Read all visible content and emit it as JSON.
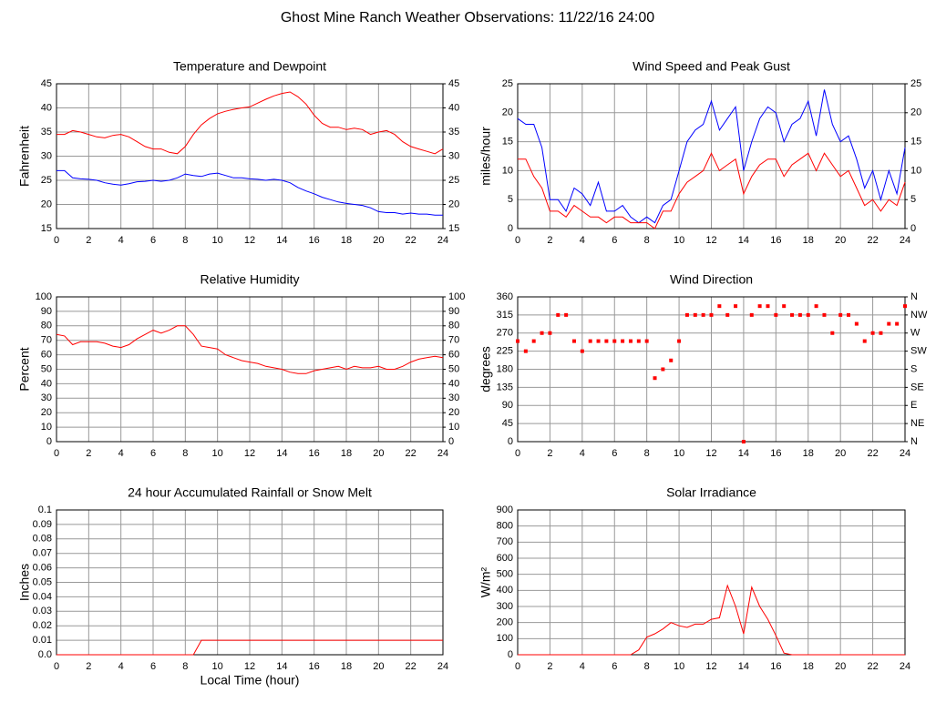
{
  "title": "Ghost Mine Ranch Weather Observations: 11/22/16 24:00",
  "chart_data": [
    {
      "type": "line",
      "title": "Temperature and Dewpoint",
      "ylabel": "Fahrenheit",
      "x": [
        0,
        0.5,
        1,
        1.5,
        2,
        2.5,
        3,
        3.5,
        4,
        4.5,
        5,
        5.5,
        6,
        6.5,
        7,
        7.5,
        8,
        8.5,
        9,
        9.5,
        10,
        10.5,
        11,
        11.5,
        12,
        12.5,
        13,
        13.5,
        14,
        14.5,
        15,
        15.5,
        16,
        16.5,
        17,
        17.5,
        18,
        18.5,
        19,
        19.5,
        20,
        20.5,
        21,
        21.5,
        22,
        22.5,
        23,
        23.5,
        24
      ],
      "series": [
        {
          "color": "#ff0000",
          "values": [
            34.5,
            34.5,
            35.3,
            35,
            34.5,
            34,
            33.8,
            34.3,
            34.5,
            34,
            33,
            32,
            31.5,
            31.5,
            30.8,
            30.5,
            32,
            34.5,
            36.5,
            37.8,
            38.8,
            39.3,
            39.7,
            40,
            40.2,
            41,
            41.8,
            42.5,
            43,
            43.3,
            42.3,
            40.8,
            38.5,
            36.8,
            36,
            36,
            35.5,
            35.8,
            35.5,
            34.5,
            35,
            35.3,
            34.5,
            33,
            32,
            31.5,
            31,
            30.5,
            31.5
          ]
        },
        {
          "color": "#0000ff",
          "values": [
            27,
            27,
            25.5,
            25.3,
            25.2,
            25,
            24.5,
            24.2,
            24,
            24.3,
            24.7,
            24.8,
            25,
            24.8,
            25,
            25.5,
            26.3,
            26,
            25.8,
            26.3,
            26.5,
            26,
            25.5,
            25.5,
            25.3,
            25.2,
            25,
            25.2,
            25,
            24.5,
            23.5,
            22.8,
            22.2,
            21.5,
            21,
            20.5,
            20.2,
            20,
            19.8,
            19.3,
            18.5,
            18.3,
            18.3,
            18,
            18.2,
            18,
            18,
            17.8,
            17.8
          ]
        }
      ],
      "xlim": [
        0,
        24
      ],
      "xticks": [
        0,
        2,
        4,
        6,
        8,
        10,
        12,
        14,
        16,
        18,
        20,
        22,
        24
      ],
      "ylim": [
        15,
        45
      ],
      "yticks": [
        15,
        20,
        25,
        30,
        35,
        40,
        45
      ],
      "y2lim": [
        15,
        45
      ],
      "y2ticks": [
        15,
        20,
        25,
        30,
        35,
        40,
        45
      ],
      "grid": true
    },
    {
      "type": "line",
      "title": "Wind Speed and Peak Gust",
      "ylabel": "miles/hour",
      "x": [
        0,
        0.5,
        1,
        1.5,
        2,
        2.5,
        3,
        3.5,
        4,
        4.5,
        5,
        5.5,
        6,
        6.5,
        7,
        7.5,
        8,
        8.5,
        9,
        9.5,
        10,
        10.5,
        11,
        11.5,
        12,
        12.5,
        13,
        13.5,
        14,
        14.5,
        15,
        15.5,
        16,
        16.5,
        17,
        17.5,
        18,
        18.5,
        19,
        19.5,
        20,
        20.5,
        21,
        21.5,
        22,
        22.5,
        23,
        23.5,
        24
      ],
      "series": [
        {
          "color": "#0000ff",
          "values": [
            19,
            18,
            18,
            14,
            5,
            5,
            3,
            7,
            6,
            4,
            8,
            3,
            3,
            4,
            2,
            1,
            2,
            1,
            4,
            5,
            10,
            15,
            17,
            18,
            22,
            17,
            19,
            21,
            10,
            15,
            19,
            21,
            20,
            15,
            18,
            19,
            22,
            16,
            24,
            18,
            15,
            16,
            12,
            7,
            10,
            5,
            10,
            6,
            14
          ]
        },
        {
          "color": "#ff0000",
          "values": [
            12,
            12,
            9,
            7,
            3,
            3,
            2,
            4,
            3,
            2,
            2,
            1,
            2,
            2,
            1,
            1,
            1,
            0,
            3,
            3,
            6,
            8,
            9,
            10,
            13,
            10,
            11,
            12,
            6,
            9,
            11,
            12,
            12,
            9,
            11,
            12,
            13,
            10,
            13,
            11,
            9,
            10,
            7,
            4,
            5,
            3,
            5,
            4,
            8
          ]
        }
      ],
      "xlim": [
        0,
        24
      ],
      "xticks": [
        0,
        2,
        4,
        6,
        8,
        10,
        12,
        14,
        16,
        18,
        20,
        22,
        24
      ],
      "ylim": [
        0,
        25
      ],
      "yticks": [
        0,
        5,
        10,
        15,
        20,
        25
      ],
      "y2lim": [
        0,
        25
      ],
      "y2ticks": [
        0,
        5,
        10,
        15,
        20,
        25
      ],
      "grid": true
    },
    {
      "type": "line",
      "title": "Relative Humidity",
      "ylabel": "Percent",
      "x": [
        0,
        0.5,
        1,
        1.5,
        2,
        2.5,
        3,
        3.5,
        4,
        4.5,
        5,
        5.5,
        6,
        6.5,
        7,
        7.5,
        8,
        8.5,
        9,
        9.5,
        10,
        10.5,
        11,
        11.5,
        12,
        12.5,
        13,
        13.5,
        14,
        14.5,
        15,
        15.5,
        16,
        16.5,
        17,
        17.5,
        18,
        18.5,
        19,
        19.5,
        20,
        20.5,
        21,
        21.5,
        22,
        22.5,
        23,
        23.5,
        24
      ],
      "series": [
        {
          "color": "#ff0000",
          "values": [
            74,
            73,
            67,
            69,
            69,
            69,
            68,
            66,
            65,
            67,
            71,
            74,
            77,
            75,
            77,
            80,
            80,
            74,
            66,
            65,
            64,
            60,
            58,
            56,
            55,
            54,
            52,
            51,
            50,
            48,
            47,
            47,
            49,
            50,
            51,
            52,
            50,
            52,
            51,
            51,
            52,
            50,
            50,
            52,
            55,
            57,
            58,
            59,
            58
          ]
        }
      ],
      "xlim": [
        0,
        24
      ],
      "xticks": [
        0,
        2,
        4,
        6,
        8,
        10,
        12,
        14,
        16,
        18,
        20,
        22,
        24
      ],
      "ylim": [
        0,
        100
      ],
      "yticks": [
        0,
        10,
        20,
        30,
        40,
        50,
        60,
        70,
        80,
        90,
        100
      ],
      "y2lim": [
        0,
        100
      ],
      "y2ticks": [
        0,
        10,
        20,
        30,
        40,
        50,
        60,
        70,
        80,
        90,
        100
      ],
      "grid": true
    },
    {
      "type": "scatter",
      "title": "Wind Direction",
      "ylabel": "degrees",
      "x": [
        0,
        0.5,
        1,
        1.5,
        2,
        2.5,
        3,
        3.5,
        4,
        4.5,
        5,
        5.5,
        6,
        6.5,
        7,
        7.5,
        8,
        8.5,
        9,
        9.5,
        10,
        10.5,
        11,
        11.5,
        12,
        12.5,
        13,
        13.5,
        14,
        14.5,
        15,
        15.5,
        16,
        16.5,
        17,
        17.5,
        18,
        18.5,
        19,
        19.5,
        20,
        20.5,
        21,
        21.5,
        22,
        22.5,
        23,
        23.5,
        24
      ],
      "series": [
        {
          "color": "#ff0000",
          "values": [
            250,
            225,
            250,
            270,
            270,
            315,
            315,
            250,
            225,
            250,
            250,
            250,
            250,
            250,
            250,
            250,
            250,
            158,
            180,
            202,
            250,
            315,
            315,
            315,
            315,
            337,
            315,
            337,
            0,
            315,
            337,
            337,
            315,
            337,
            315,
            315,
            315,
            337,
            315,
            270,
            315,
            315,
            293,
            250,
            270,
            270,
            293,
            293,
            337
          ]
        }
      ],
      "xlim": [
        0,
        24
      ],
      "xticks": [
        0,
        2,
        4,
        6,
        8,
        10,
        12,
        14,
        16,
        18,
        20,
        22,
        24
      ],
      "ylim": [
        0,
        360
      ],
      "yticks": [
        0,
        45,
        90,
        135,
        180,
        225,
        270,
        315,
        360
      ],
      "y2lim": [
        0,
        360
      ],
      "y2ticks": [
        {
          "value": 0,
          "label": "N"
        },
        {
          "value": 45,
          "label": "NE"
        },
        {
          "value": 90,
          "label": "E"
        },
        {
          "value": 135,
          "label": "SE"
        },
        {
          "value": 180,
          "label": "S"
        },
        {
          "value": 225,
          "label": "SW"
        },
        {
          "value": 270,
          "label": "W"
        },
        {
          "value": 315,
          "label": "NW"
        },
        {
          "value": 360,
          "label": "N"
        }
      ],
      "grid": true
    },
    {
      "type": "line",
      "title": "24 hour Accumulated Rainfall or Snow Melt",
      "ylabel": "Inches",
      "xlabel": "Local Time (hour)",
      "x": [
        0,
        0.5,
        1,
        1.5,
        2,
        2.5,
        3,
        3.5,
        4,
        4.5,
        5,
        5.5,
        6,
        6.5,
        7,
        7.5,
        8,
        8.5,
        9,
        9.5,
        10,
        10.5,
        11,
        11.5,
        12,
        12.5,
        13,
        13.5,
        14,
        14.5,
        15,
        15.5,
        16,
        16.5,
        17,
        17.5,
        18,
        18.5,
        19,
        19.5,
        20,
        20.5,
        21,
        21.5,
        22,
        22.5,
        23,
        23.5,
        24
      ],
      "series": [
        {
          "color": "#ff0000",
          "values": [
            0,
            0,
            0,
            0,
            0,
            0,
            0,
            0,
            0,
            0,
            0,
            0,
            0,
            0,
            0,
            0,
            0,
            0,
            0.01,
            0.01,
            0.01,
            0.01,
            0.01,
            0.01,
            0.01,
            0.01,
            0.01,
            0.01,
            0.01,
            0.01,
            0.01,
            0.01,
            0.01,
            0.01,
            0.01,
            0.01,
            0.01,
            0.01,
            0.01,
            0.01,
            0.01,
            0.01,
            0.01,
            0.01,
            0.01,
            0.01,
            0.01,
            0.01,
            0.01
          ]
        }
      ],
      "xlim": [
        0,
        24
      ],
      "xticks": [
        0,
        2,
        4,
        6,
        8,
        10,
        12,
        14,
        16,
        18,
        20,
        22,
        24
      ],
      "ylim": [
        0,
        0.1
      ],
      "yticks": [
        {
          "value": 0,
          "label": "0.0"
        },
        0.01,
        0.02,
        0.03,
        0.04,
        0.05,
        0.06,
        0.07,
        0.08,
        0.09,
        0.1
      ],
      "grid": true
    },
    {
      "type": "line",
      "title": "Solar Irradiance",
      "ylabel": "W/m²",
      "x": [
        0,
        0.5,
        1,
        1.5,
        2,
        2.5,
        3,
        3.5,
        4,
        4.5,
        5,
        5.5,
        6,
        6.5,
        7,
        7.5,
        8,
        8.5,
        9,
        9.5,
        10,
        10.5,
        11,
        11.5,
        12,
        12.5,
        13,
        13.5,
        14,
        14.5,
        15,
        15.5,
        16,
        16.5,
        17,
        17.5,
        18,
        18.5,
        19,
        19.5,
        20,
        20.5,
        21,
        21.5,
        22,
        22.5,
        23,
        23.5,
        24
      ],
      "series": [
        {
          "color": "#ff0000",
          "values": [
            0,
            0,
            0,
            0,
            0,
            0,
            0,
            0,
            0,
            0,
            0,
            0,
            0,
            0,
            0,
            30,
            110,
            130,
            160,
            200,
            180,
            170,
            190,
            190,
            220,
            230,
            430,
            300,
            130,
            420,
            300,
            220,
            120,
            10,
            0,
            0,
            0,
            0,
            0,
            0,
            0,
            0,
            0,
            0,
            0,
            0,
            0,
            0,
            0
          ]
        }
      ],
      "xlim": [
        0,
        24
      ],
      "xticks": [
        0,
        2,
        4,
        6,
        8,
        10,
        12,
        14,
        16,
        18,
        20,
        22,
        24
      ],
      "ylim": [
        0,
        900
      ],
      "yticks": [
        0,
        100,
        200,
        300,
        400,
        500,
        600,
        700,
        800,
        900
      ],
      "grid": true
    }
  ]
}
